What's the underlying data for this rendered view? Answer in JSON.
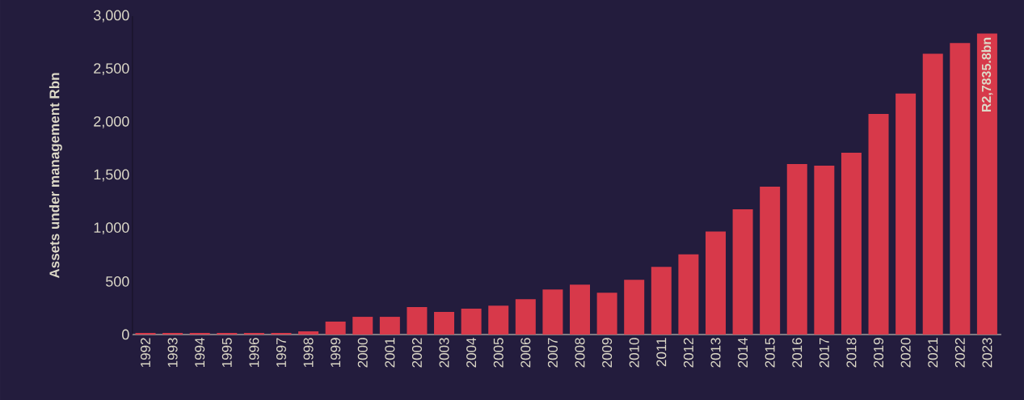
{
  "chart_data": {
    "type": "bar",
    "ylabel": "Assets under management Rbn",
    "categories": [
      "1992",
      "1993",
      "1994",
      "1995",
      "1996",
      "1997",
      "1998",
      "1999",
      "2000",
      "2001",
      "2002",
      "2003",
      "2004",
      "2005",
      "2006",
      "2007",
      "2008",
      "2009",
      "2010",
      "2011",
      "2012",
      "2013",
      "2014",
      "2015",
      "2016",
      "2017",
      "2018",
      "2019",
      "2020",
      "2021",
      "2022",
      "2023"
    ],
    "values": [
      15,
      15,
      15,
      15,
      15,
      15,
      30,
      122,
      167,
      167,
      259,
      213,
      244,
      272,
      333,
      424,
      470,
      394,
      516,
      637,
      756,
      970,
      1180,
      1394,
      1607,
      1592,
      1714,
      2079,
      2270,
      2645,
      2747,
      2835.8
    ],
    "value_labels": [
      null,
      null,
      null,
      null,
      null,
      null,
      null,
      null,
      null,
      null,
      null,
      null,
      null,
      null,
      null,
      null,
      null,
      null,
      null,
      null,
      null,
      null,
      null,
      null,
      null,
      null,
      null,
      null,
      null,
      null,
      null,
      "R2,7835.8bn"
    ],
    "color": "#d7394a",
    "ylim": [
      0,
      3000
    ],
    "yticks": [
      {
        "value": 0,
        "label": "0"
      },
      {
        "value": 500,
        "label": "500"
      },
      {
        "value": 1000,
        "label": "1,000"
      },
      {
        "value": 1500,
        "label": "1,500"
      },
      {
        "value": 2000,
        "label": "2,000"
      },
      {
        "value": 2500,
        "label": "2,500"
      },
      {
        "value": 3000,
        "label": "3,000"
      }
    ]
  }
}
